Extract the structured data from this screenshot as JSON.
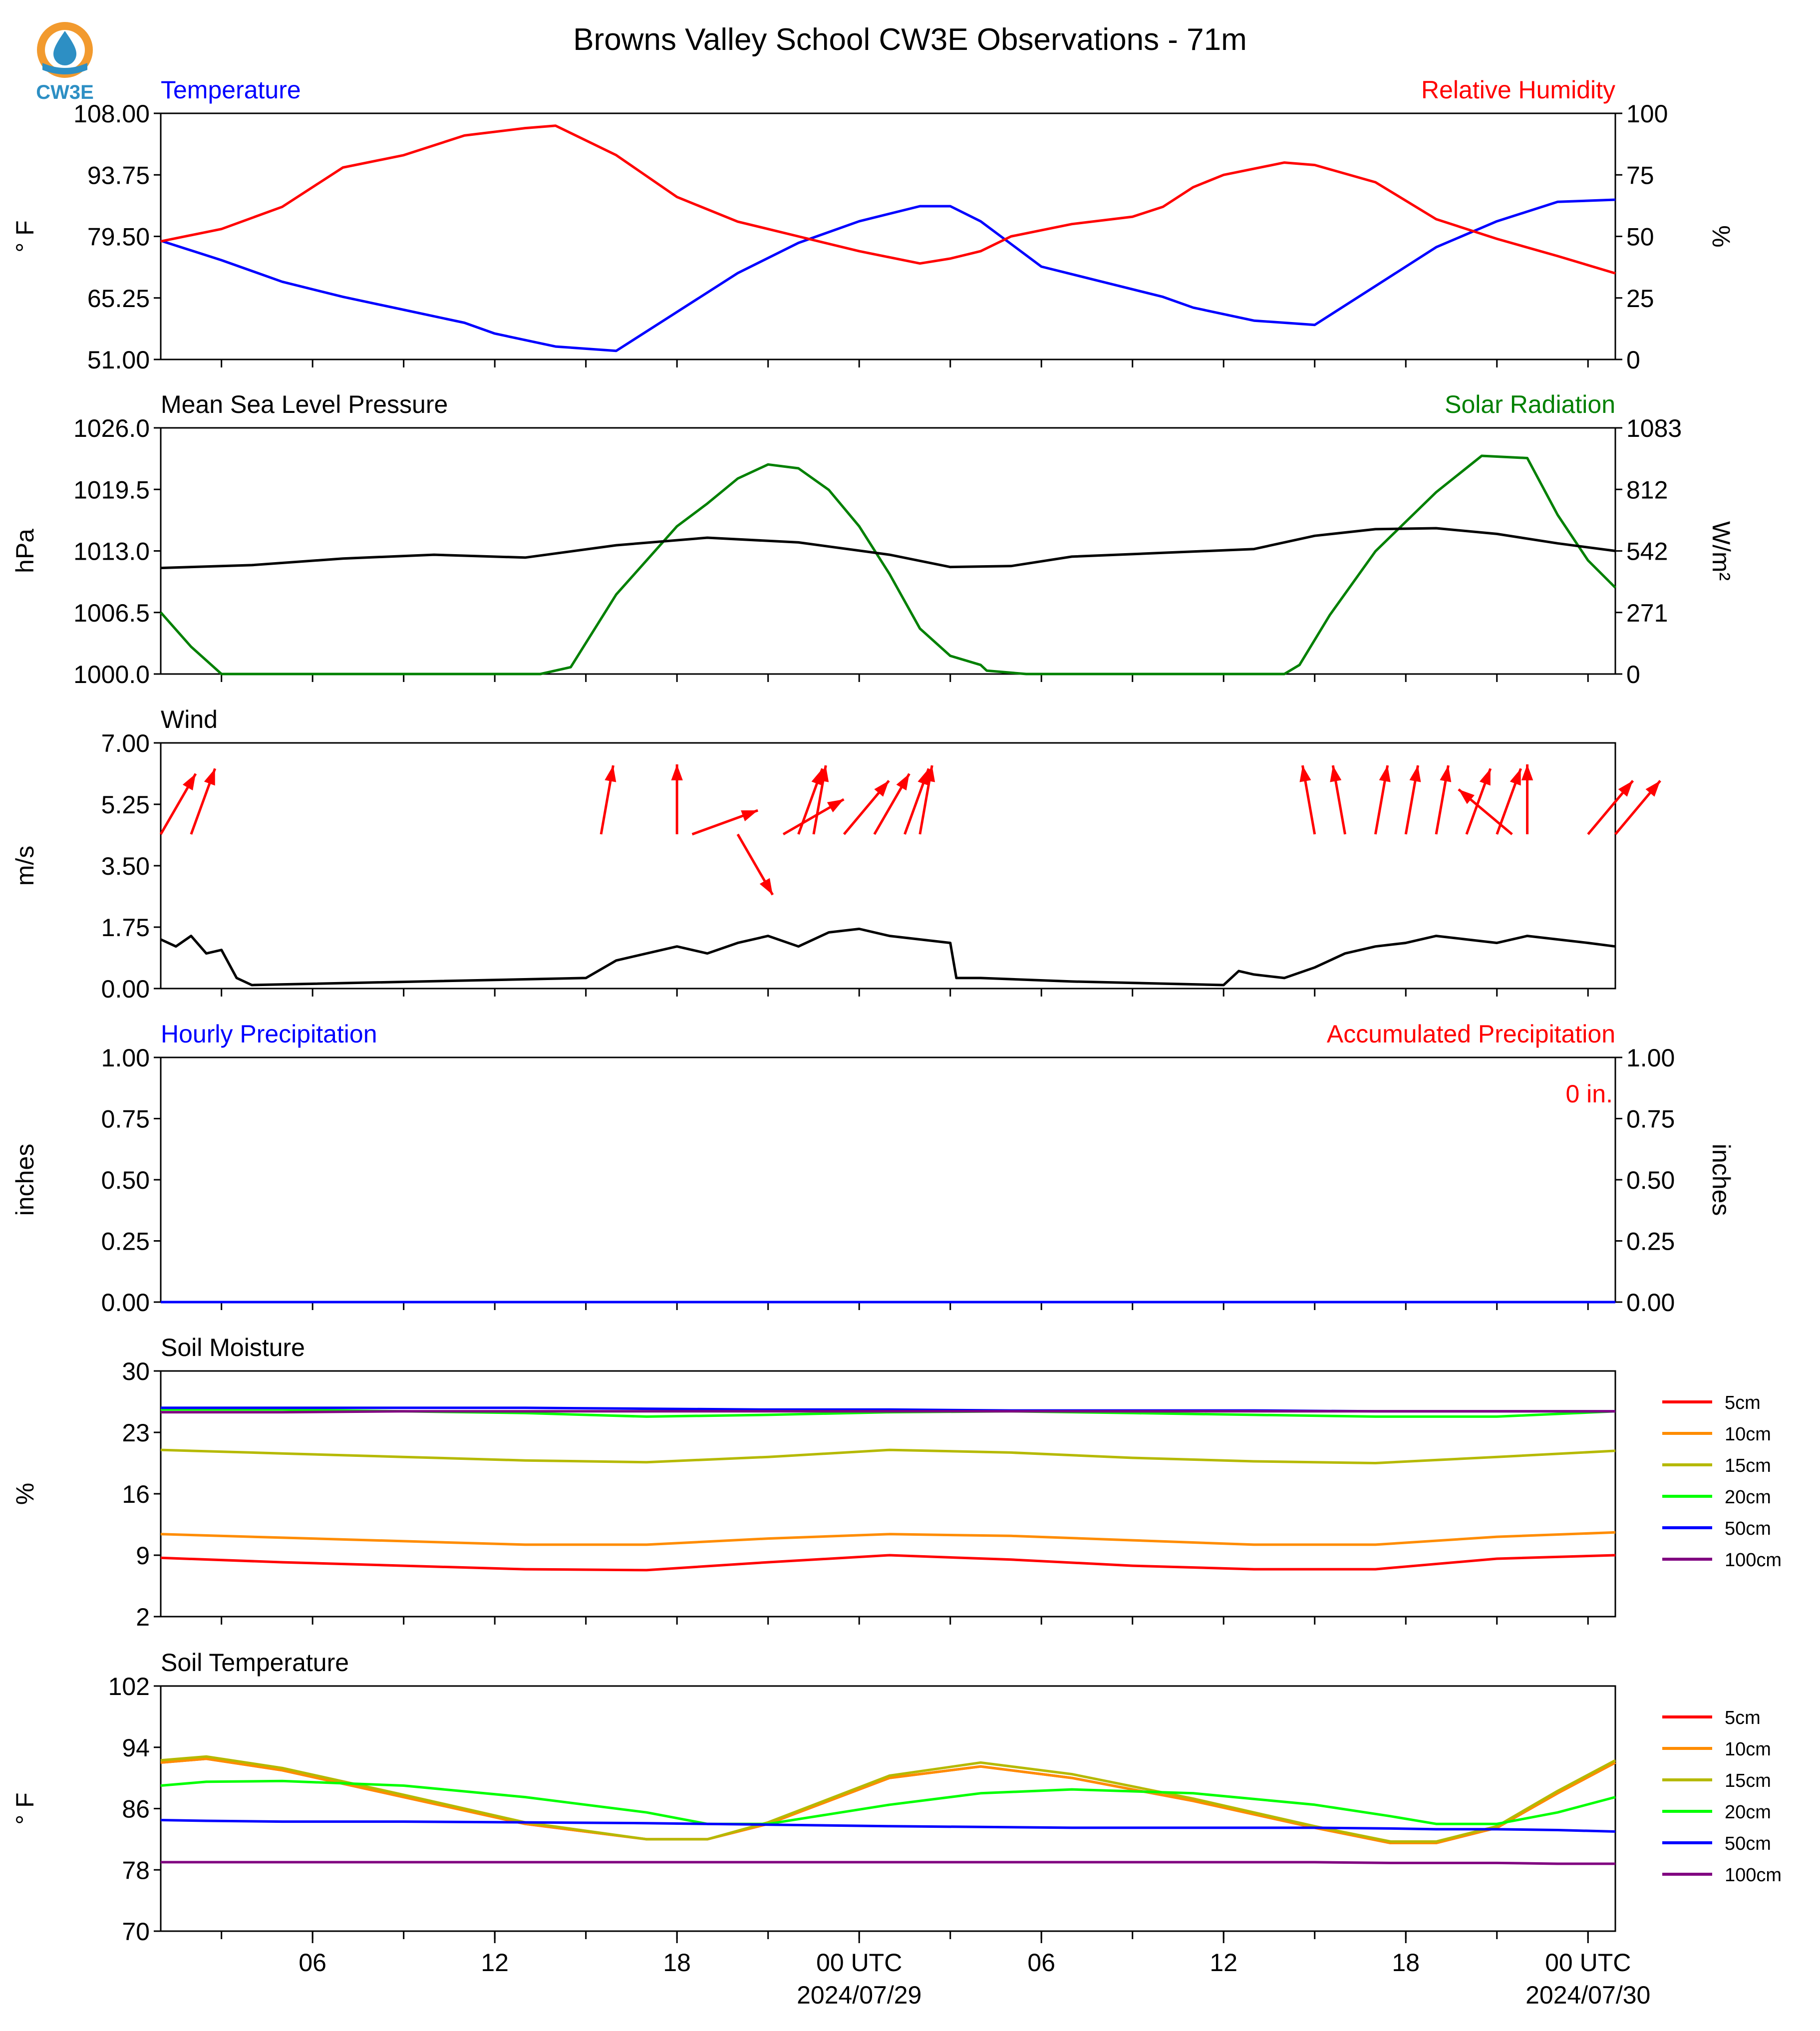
{
  "title": "Browns Valley School CW3E Observations - 71m",
  "logo": {
    "text": "CW3E",
    "colors": {
      "ring": "#f29a2e",
      "drop": "#2d8fc4"
    }
  },
  "x_axis": {
    "tick_labels": [
      "06",
      "12",
      "18",
      "00 UTC",
      "06",
      "12",
      "18",
      "00 UTC"
    ],
    "date_labels": [
      "2024/07/29",
      "2024/07/30"
    ]
  },
  "legend": {
    "soil_moisture": [
      "5cm",
      "10cm",
      "15cm",
      "20cm",
      "50cm",
      "100cm"
    ],
    "soil_temperature": [
      "5cm",
      "10cm",
      "15cm",
      "20cm",
      "50cm",
      "100cm"
    ]
  },
  "panels": {
    "temperature": {
      "left_title": "Temperature",
      "right_title": "Relative Humidity",
      "left_unit": "° F",
      "right_unit": "%",
      "left_ticks": [
        "108.00",
        "93.75",
        "79.50",
        "65.25",
        "51.00"
      ],
      "right_ticks": [
        "100",
        "75",
        "50",
        "25",
        "0"
      ]
    },
    "pressure": {
      "left_title": "Mean Sea Level Pressure",
      "right_title": "Solar Radiation",
      "left_unit": "hPa",
      "right_unit": "W/m²",
      "left_ticks": [
        "1026.0",
        "1019.5",
        "1013.0",
        "1006.5",
        "1000.0"
      ],
      "right_ticks": [
        "1083",
        "812",
        "542",
        "271",
        "0"
      ]
    },
    "wind": {
      "left_title": "Wind",
      "left_unit": "m/s",
      "left_ticks": [
        "7.00",
        "5.25",
        "3.50",
        "1.75",
        "0.00"
      ]
    },
    "precip": {
      "left_title": "Hourly Precipitation",
      "right_title": "Accumulated Precipitation",
      "left_unit": "inches",
      "right_unit": "inches",
      "left_ticks": [
        "1.00",
        "0.75",
        "0.50",
        "0.25",
        "0.00"
      ],
      "right_ticks": [
        "1.00",
        "0.75",
        "0.50",
        "0.25",
        "0.00"
      ],
      "annotation": "0 in."
    },
    "soil_moisture": {
      "left_title": "Soil Moisture",
      "left_unit": "%",
      "left_ticks": [
        "30",
        "23",
        "16",
        "9",
        "2"
      ]
    },
    "soil_temperature": {
      "left_title": "Soil Temperature",
      "left_unit": "° F",
      "left_ticks": [
        "102",
        "94",
        "86",
        "78",
        "70"
      ]
    }
  },
  "chart_data": [
    {
      "type": "line",
      "title": "Temperature",
      "x_hours_since": "2024-07-28 01:00 UTC",
      "x": [
        0,
        2,
        4,
        6,
        8,
        10,
        11,
        13,
        15,
        17,
        19,
        21,
        23,
        25,
        26,
        27,
        29,
        31,
        33,
        34,
        36,
        38,
        40,
        42,
        44,
        46,
        47.9
      ],
      "ylim": [
        51,
        108
      ],
      "series": [
        {
          "name": "Temperature",
          "color": "#0000ff",
          "axis": "left",
          "values": [
            78.5,
            74.0,
            69.0,
            65.5,
            62.5,
            59.5,
            57.0,
            54.0,
            53.0,
            62.0,
            71.0,
            78.0,
            83.0,
            86.5,
            86.5,
            83.0,
            72.5,
            69.0,
            65.5,
            63.0,
            60.0,
            59.0,
            68.0,
            77.0,
            83.0,
            87.5,
            88.0
          ]
        }
      ]
    },
    {
      "type": "line",
      "title": "Relative Humidity",
      "x": [
        0,
        2,
        4,
        6,
        8,
        10,
        12,
        13,
        15,
        17,
        19,
        21,
        23,
        25,
        26,
        27,
        28,
        30,
        32,
        33,
        34,
        35,
        37,
        38,
        40,
        42,
        44,
        46,
        47.9
      ],
      "ylim": [
        0,
        100
      ],
      "series": [
        {
          "name": "Relative Humidity",
          "color": "#ff0000",
          "axis": "right",
          "values": [
            48,
            53,
            62,
            78,
            83,
            91,
            94,
            95,
            83,
            66,
            56,
            50,
            44,
            39,
            41,
            44,
            50,
            55,
            58,
            62,
            70,
            75,
            80,
            79,
            72,
            57,
            49,
            42,
            35
          ]
        }
      ]
    },
    {
      "type": "line",
      "title": "Mean Sea Level Pressure",
      "x": [
        0,
        3,
        6,
        9,
        12,
        15,
        18,
        21,
        24,
        26,
        28,
        30,
        33,
        36,
        38,
        40,
        42,
        44,
        46,
        47.9
      ],
      "ylim": [
        1000,
        1026
      ],
      "series": [
        {
          "name": "Mean Sea Level Pressure",
          "color": "#000000",
          "axis": "left",
          "values": [
            1011.2,
            1011.5,
            1012.2,
            1012.6,
            1012.3,
            1013.6,
            1014.4,
            1013.9,
            1012.6,
            1011.3,
            1011.4,
            1012.4,
            1012.8,
            1013.2,
            1014.6,
            1015.3,
            1015.4,
            1014.8,
            1013.8,
            1013.0
          ]
        }
      ]
    },
    {
      "type": "line",
      "title": "Solar Radiation",
      "x": [
        0,
        1,
        2,
        12.5,
        13.5,
        15,
        17,
        18,
        19,
        20,
        21,
        22,
        23,
        24,
        25,
        26,
        27,
        27.2,
        28.5,
        29,
        37,
        37.5,
        38.5,
        40,
        42,
        43.5,
        45,
        46,
        47,
        47.9
      ],
      "ylim": [
        0,
        1083
      ],
      "series": [
        {
          "name": "Solar Radiation",
          "color": "#008000",
          "axis": "right",
          "values": [
            271,
            120,
            0,
            0,
            30,
            350,
            650,
            750,
            860,
            922,
            905,
            810,
            650,
            440,
            200,
            80,
            40,
            15,
            0,
            0,
            0,
            40,
            260,
            540,
            800,
            960,
            950,
            700,
            500,
            380
          ]
        }
      ]
    },
    {
      "type": "line",
      "title": "Wind",
      "x": [
        0,
        0.5,
        1,
        1.5,
        2,
        2.5,
        3,
        14,
        15,
        16,
        17,
        18,
        19,
        20,
        21,
        22,
        23,
        24,
        25,
        26,
        26.2,
        27,
        30,
        35,
        35.5,
        36,
        37,
        38,
        39,
        40,
        41,
        42,
        43,
        44,
        45,
        46,
        47,
        47.9
      ],
      "ylim": [
        0,
        7
      ],
      "series": [
        {
          "name": "Wind speed",
          "color": "#000000",
          "axis": "left",
          "values": [
            1.4,
            1.2,
            1.5,
            1.0,
            1.1,
            0.3,
            0.1,
            0.3,
            0.8,
            1.0,
            1.2,
            1.0,
            1.3,
            1.5,
            1.2,
            1.6,
            1.7,
            1.5,
            1.4,
            1.3,
            0.3,
            0.3,
            0.2,
            0.1,
            0.5,
            0.4,
            0.3,
            0.6,
            1.0,
            1.2,
            1.3,
            1.5,
            1.4,
            1.3,
            1.5,
            1.4,
            1.3,
            1.2
          ]
        }
      ],
      "wind_barbs": {
        "color": "#ff0000",
        "x": [
          0,
          1,
          14.5,
          17,
          17.5,
          19,
          20.5,
          21,
          21.5,
          22.5,
          23.5,
          24.5,
          25,
          38,
          39,
          40,
          41,
          42,
          43,
          44,
          44.5,
          45,
          47,
          47.9
        ],
        "direction_deg": [
          210,
          200,
          190,
          180,
          250,
          330,
          240,
          200,
          190,
          220,
          210,
          200,
          190,
          170,
          170,
          190,
          190,
          190,
          200,
          200,
          130,
          180,
          220,
          220
        ]
      }
    },
    {
      "type": "line",
      "title": "Hourly Precipitation",
      "x": [
        0,
        47.9
      ],
      "ylim": [
        0,
        1
      ],
      "series": [
        {
          "name": "Accumulated Precipitation",
          "color": "#ff0000",
          "axis": "right",
          "values": [
            0,
            0
          ]
        },
        {
          "name": "Hourly Precipitation",
          "color": "#0000ff",
          "axis": "left",
          "values": [
            0,
            0
          ]
        }
      ]
    },
    {
      "type": "line",
      "title": "Soil Moisture",
      "x": [
        0,
        4,
        8,
        12,
        16,
        20,
        24,
        28,
        32,
        36,
        40,
        44,
        47.9
      ],
      "ylim": [
        2,
        30
      ],
      "series": [
        {
          "name": "5cm",
          "color": "#ff0000",
          "values": [
            8.7,
            8.2,
            7.8,
            7.4,
            7.3,
            8.2,
            9.0,
            8.5,
            7.8,
            7.4,
            7.4,
            8.6,
            9.0
          ]
        },
        {
          "name": "10cm",
          "color": "#ff8c00",
          "values": [
            11.4,
            11.0,
            10.6,
            10.2,
            10.2,
            10.9,
            11.4,
            11.2,
            10.7,
            10.2,
            10.2,
            11.1,
            11.6
          ]
        },
        {
          "name": "15cm",
          "color": "#b5b900",
          "values": [
            21.0,
            20.6,
            20.2,
            19.8,
            19.6,
            20.2,
            21.0,
            20.7,
            20.1,
            19.7,
            19.5,
            20.2,
            20.9
          ]
        },
        {
          "name": "20cm",
          "color": "#00ff00",
          "values": [
            25.6,
            25.6,
            25.4,
            25.2,
            24.8,
            25.0,
            25.3,
            25.4,
            25.2,
            25.0,
            24.8,
            24.8,
            25.4
          ]
        },
        {
          "name": "50cm",
          "color": "#0000ff",
          "values": [
            25.8,
            25.8,
            25.8,
            25.8,
            25.7,
            25.6,
            25.6,
            25.5,
            25.5,
            25.5,
            25.4,
            25.4,
            25.4
          ]
        },
        {
          "name": "100cm",
          "color": "#800080",
          "values": [
            25.3,
            25.3,
            25.4,
            25.4,
            25.4,
            25.4,
            25.4,
            25.4,
            25.4,
            25.4,
            25.4,
            25.4,
            25.4
          ]
        }
      ]
    },
    {
      "type": "line",
      "title": "Soil Temperature",
      "x": [
        0,
        1.5,
        4,
        8,
        12,
        16,
        18,
        20,
        24,
        27,
        30,
        34,
        38,
        40.5,
        42,
        44,
        46,
        47.9
      ],
      "ylim": [
        70,
        102
      ],
      "series": [
        {
          "name": "5cm",
          "color": "#ff0000",
          "values": [
            92.0,
            92.5,
            91.0,
            87.5,
            84.0,
            82.0,
            82.0,
            84.0,
            90.0,
            91.5,
            90.0,
            87.0,
            83.5,
            81.5,
            81.5,
            83.5,
            88.0,
            92.0
          ]
        },
        {
          "name": "10cm",
          "color": "#ff8c00",
          "values": [
            92.0,
            92.5,
            91.0,
            87.5,
            84.0,
            82.0,
            82.0,
            84.0,
            90.0,
            91.5,
            90.0,
            87.0,
            83.5,
            81.5,
            81.5,
            83.5,
            88.0,
            92.0
          ]
        },
        {
          "name": "15cm",
          "color": "#b5b900",
          "values": [
            92.3,
            92.8,
            91.3,
            87.8,
            84.2,
            82.0,
            82.0,
            84.2,
            90.3,
            92.0,
            90.5,
            87.3,
            83.7,
            81.7,
            81.7,
            83.7,
            88.3,
            92.3
          ]
        },
        {
          "name": "20cm",
          "color": "#00ff00",
          "values": [
            89.0,
            89.5,
            89.6,
            89.0,
            87.5,
            85.5,
            84.0,
            84.0,
            86.5,
            88.0,
            88.5,
            88.0,
            86.5,
            85.0,
            84.0,
            84.0,
            85.5,
            87.5
          ]
        },
        {
          "name": "50cm",
          "color": "#0000ff",
          "values": [
            84.5,
            84.4,
            84.3,
            84.3,
            84.2,
            84.1,
            84.0,
            83.9,
            83.7,
            83.6,
            83.5,
            83.5,
            83.5,
            83.4,
            83.3,
            83.3,
            83.2,
            83.0
          ]
        },
        {
          "name": "100cm",
          "color": "#800080",
          "values": [
            79.0,
            79.0,
            79.0,
            79.0,
            79.0,
            79.0,
            79.0,
            79.0,
            79.0,
            79.0,
            79.0,
            79.0,
            79.0,
            78.9,
            78.9,
            78.9,
            78.8,
            78.8
          ]
        }
      ]
    }
  ]
}
